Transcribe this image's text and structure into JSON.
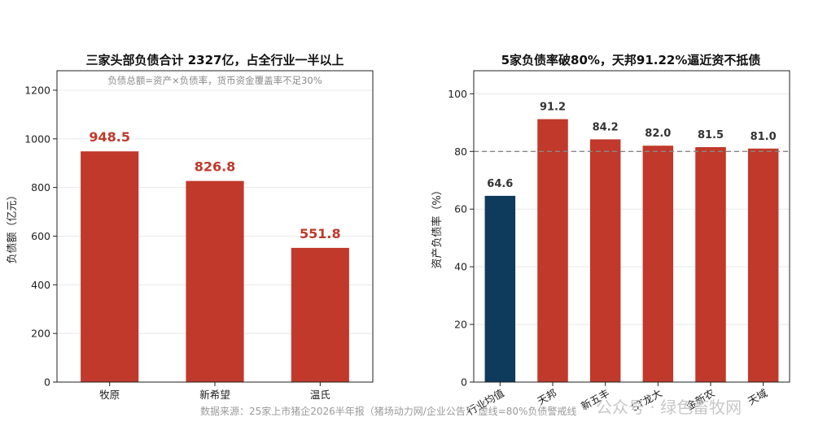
{
  "chart_data": [
    {
      "type": "bar",
      "title": "三家头部负债合计 2327亿，占全行业一半以上",
      "subtitle": "负债总额=资产×负债率，货币资金覆盖率不足30%",
      "xlabel": "",
      "ylabel": "负债额（亿元）",
      "categories": [
        "牧原",
        "新希望",
        "温氏"
      ],
      "values": [
        948.5,
        826.8,
        551.8
      ],
      "value_labels": [
        "948.5",
        "826.8",
        "551.8"
      ],
      "ylim": [
        0,
        1280
      ],
      "yticks": [
        0,
        200,
        400,
        600,
        800,
        1000,
        1200
      ],
      "bar_color": "#c0392b",
      "grid": true
    },
    {
      "type": "bar",
      "title": "5家负债率破80%，天邦91.22%逼近资不抵债",
      "xlabel": "",
      "ylabel": "资产负债率（%）",
      "categories": [
        "行业均值",
        "天邦",
        "新五丰",
        "ST龙大",
        "金新农",
        "天域"
      ],
      "values": [
        64.6,
        91.2,
        84.2,
        82.0,
        81.5,
        81.0
      ],
      "value_labels": [
        "64.6",
        "91.2",
        "84.2",
        "82.0",
        "81.5",
        "81.0"
      ],
      "ylim": [
        0,
        108
      ],
      "yticks": [
        0,
        20,
        40,
        60,
        80,
        100
      ],
      "reference_line": 80,
      "colors": [
        "#0e3a5c",
        "#c0392b",
        "#c0392b",
        "#c0392b",
        "#c0392b",
        "#c0392b"
      ],
      "grid": true
    }
  ],
  "footer": "数据来源：25家上市猪企2026半年报（猪场动力网/企业公告）  虚线=80%负债警戒线",
  "watermark": "公众号 · 绿色畜牧网"
}
